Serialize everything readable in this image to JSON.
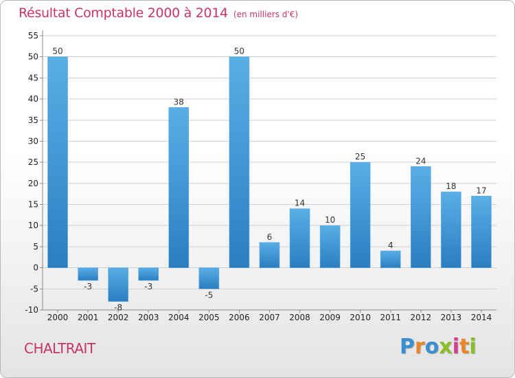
{
  "header": {
    "title": "Résultat Comptable 2000 à 2014",
    "subtitle": "(en milliers d'€)"
  },
  "footer": {
    "commune": "CHALTRAIT",
    "brand": "Proxiti",
    "brand_letters": [
      {
        "ch": "P",
        "color": "#3a8fd0"
      },
      {
        "ch": "r",
        "color": "#e8862a"
      },
      {
        "ch": "o",
        "color": "#3a8fd0"
      },
      {
        "ch": "x",
        "color": "#8cbf26"
      },
      {
        "ch": "i",
        "color": "#d63c8e"
      },
      {
        "ch": "t",
        "color": "#e8862a"
      },
      {
        "ch": "i",
        "color": "#8cbf26"
      }
    ]
  },
  "colors": {
    "bar_top": "#5aaee6",
    "bar_bottom": "#2a7ec0",
    "bar_stroke": "#5aaee6",
    "grid": "#cfcfcf",
    "accent": "#c8336a"
  },
  "chart_data": {
    "type": "bar",
    "title": "Résultat Comptable 2000 à 2014",
    "unit": "(en milliers d'€)",
    "categories": [
      "2000",
      "2001",
      "2002",
      "2003",
      "2004",
      "2005",
      "2006",
      "2007",
      "2008",
      "2009",
      "2010",
      "2011",
      "2012",
      "2013",
      "2014"
    ],
    "values": [
      50,
      -3,
      -8,
      -3,
      38,
      -5,
      50,
      6,
      14,
      10,
      25,
      4,
      24,
      18,
      17
    ],
    "ylim": [
      -10,
      55
    ],
    "yticks": [
      -10,
      -5,
      0,
      5,
      10,
      15,
      20,
      25,
      30,
      35,
      40,
      45,
      50,
      55
    ],
    "grid": true,
    "legend": "none"
  }
}
